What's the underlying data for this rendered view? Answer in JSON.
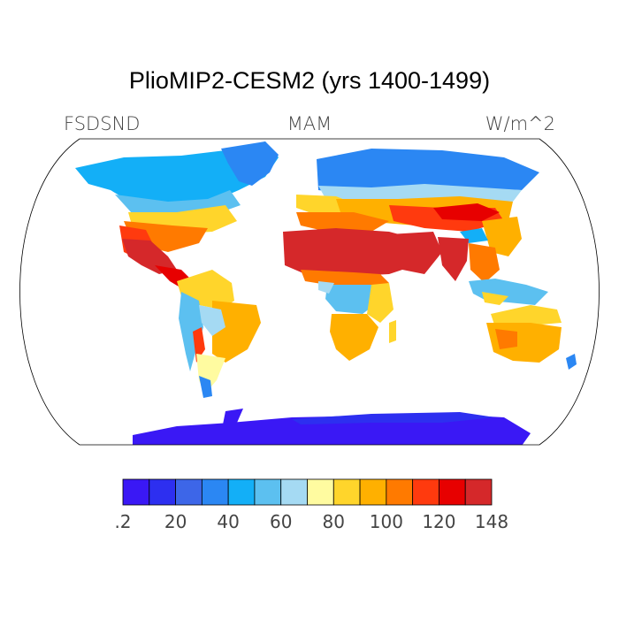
{
  "title": "PlioMIP2-CESM2 (yrs 1400-1499)",
  "variable": "FSDSND",
  "season": "MAM",
  "units": "W/m^2",
  "colorbar": {
    "colors": [
      "#3a18f5",
      "#2d2ff0",
      "#3d66e8",
      "#2b87f3",
      "#13aff7",
      "#5cc0f0",
      "#a5daf3",
      "#fffba0",
      "#ffd52b",
      "#ffb000",
      "#ff7a00",
      "#ff3a0e",
      "#e70000",
      "#d5282a"
    ],
    "tick_labels": [
      ".2",
      "20",
      "40",
      "60",
      "80",
      "100",
      "120",
      "148"
    ]
  },
  "map": {
    "projection": "Robinson",
    "ocean_color": "#ffffff",
    "outline_color": "#000000"
  }
}
